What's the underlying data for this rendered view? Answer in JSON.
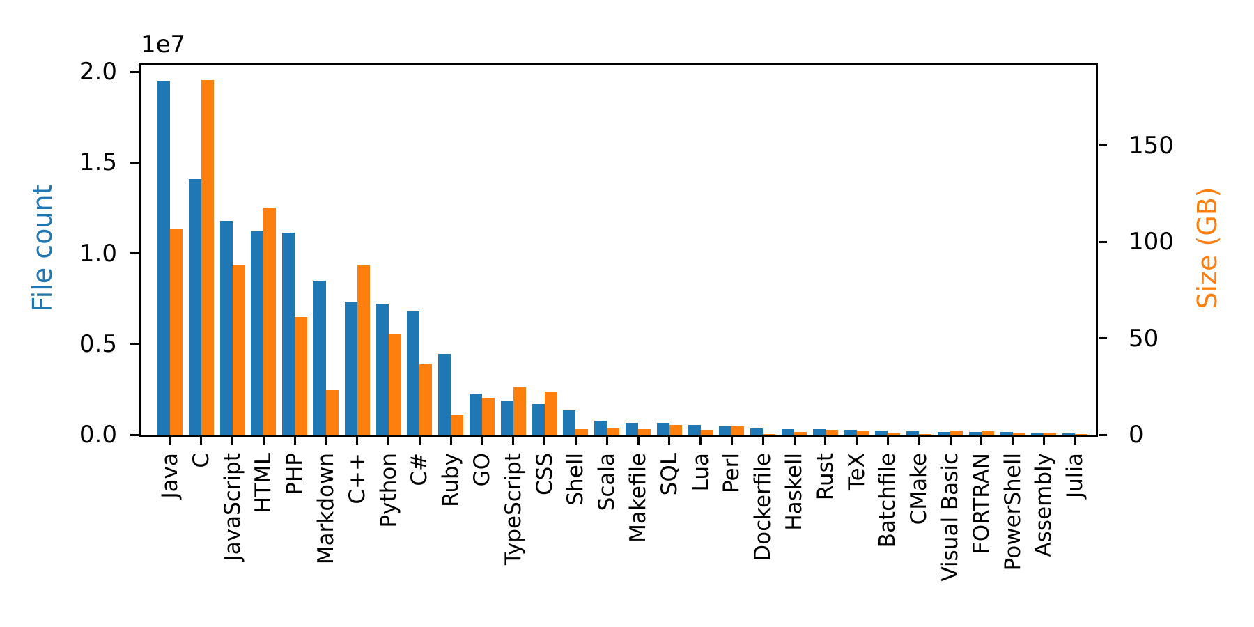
{
  "figure": {
    "background": "#ffffff"
  },
  "chart_data": {
    "type": "bar",
    "title": "",
    "grid": false,
    "legend": "none",
    "categories": [
      "Java",
      "C",
      "JavaScript",
      "HTML",
      "PHP",
      "Markdown",
      "C++",
      "Python",
      "C#",
      "Ruby",
      "GO",
      "TypeScript",
      "CSS",
      "Shell",
      "Scala",
      "Makefile",
      "SQL",
      "Lua",
      "Perl",
      "Dockerfile",
      "Haskell",
      "Rust",
      "TeX",
      "Batchfile",
      "CMake",
      "Visual Basic",
      "FORTRAN",
      "PowerShell",
      "Assembly",
      "Julia"
    ],
    "series": [
      {
        "name": "File count",
        "axis": "left",
        "color": "#1f77b4",
        "values": [
          19500000,
          14100000,
          11800000,
          11200000,
          11150000,
          8500000,
          7350000,
          7200000,
          6800000,
          4450000,
          2250000,
          1900000,
          1700000,
          1350000,
          780000,
          660000,
          650000,
          550000,
          470000,
          350000,
          320000,
          300000,
          250000,
          240000,
          190000,
          160000,
          150000,
          140000,
          90000,
          60000
        ]
      },
      {
        "name": "Size (GB)",
        "axis": "right",
        "color": "#ff7f0e",
        "values": [
          107,
          184,
          88,
          118,
          61,
          23,
          88,
          52,
          36.5,
          10.5,
          19,
          24.5,
          22.5,
          3,
          3.5,
          2.9,
          5,
          2.4,
          4.5,
          0.5,
          1.6,
          2.6,
          2.2,
          0.7,
          0.5,
          2,
          1.7,
          0.6,
          0.8,
          0.3
        ]
      }
    ],
    "left_axis": {
      "label": "File count",
      "label_color": "#1f77b4",
      "offset_text": "1e7",
      "tick_labels": [
        "0.0",
        "0.5",
        "1.0",
        "1.5",
        "2.0"
      ],
      "tick_values": [
        0,
        5000000,
        10000000,
        15000000,
        20000000
      ],
      "range": [
        0,
        20500000
      ]
    },
    "right_axis": {
      "label": "Size (GB)",
      "label_color": "#ff7f0e",
      "tick_labels": [
        "0",
        "50",
        "100",
        "150"
      ],
      "tick_values": [
        0,
        50,
        100,
        150
      ],
      "range": [
        0,
        193
      ]
    },
    "x_axis": {
      "tick_label_rotation": 90
    }
  }
}
